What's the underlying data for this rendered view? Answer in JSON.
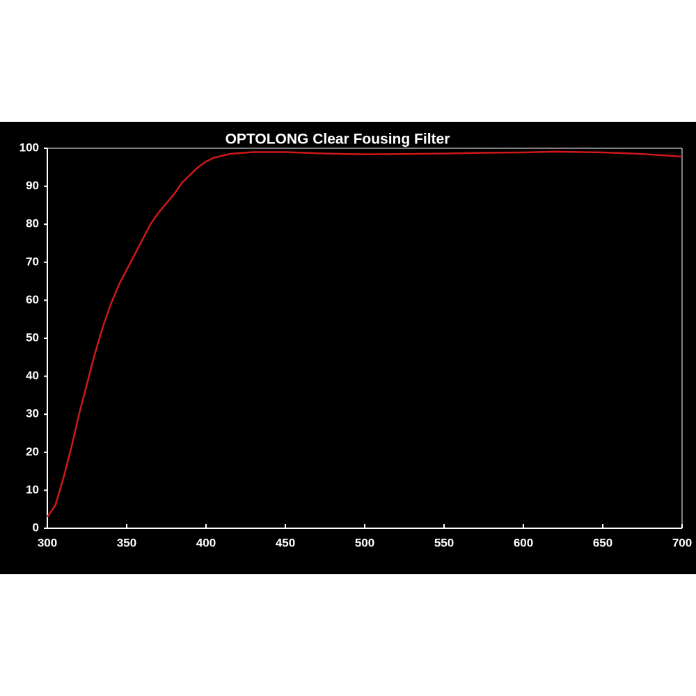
{
  "chart_data": {
    "type": "line",
    "title": "OPTOLONG Clear Fousing Filter",
    "x": [
      300,
      305,
      310,
      315,
      320,
      325,
      330,
      335,
      340,
      345,
      350,
      355,
      360,
      365,
      370,
      375,
      380,
      385,
      390,
      395,
      400,
      405,
      410,
      415,
      420,
      430,
      440,
      450,
      475,
      500,
      525,
      550,
      575,
      600,
      620,
      650,
      675,
      700
    ],
    "values": [
      3,
      6,
      13,
      21,
      30,
      38,
      46,
      53,
      59,
      64,
      68,
      72,
      76,
      80,
      83,
      85.5,
      88,
      91,
      93,
      95,
      96.5,
      97.5,
      98,
      98.5,
      98.7,
      99,
      99,
      99,
      98.6,
      98.4,
      98.5,
      98.6,
      98.8,
      98.9,
      99.1,
      98.9,
      98.5,
      97.8
    ],
    "color": "#d01818",
    "xlim": [
      300,
      700
    ],
    "xticks": [
      300,
      350,
      400,
      450,
      500,
      550,
      600,
      650,
      700
    ],
    "ylim": [
      0,
      100
    ],
    "yticks": [
      0,
      10,
      20,
      30,
      40,
      50,
      60,
      70,
      80,
      90,
      100
    ],
    "grid": false
  }
}
